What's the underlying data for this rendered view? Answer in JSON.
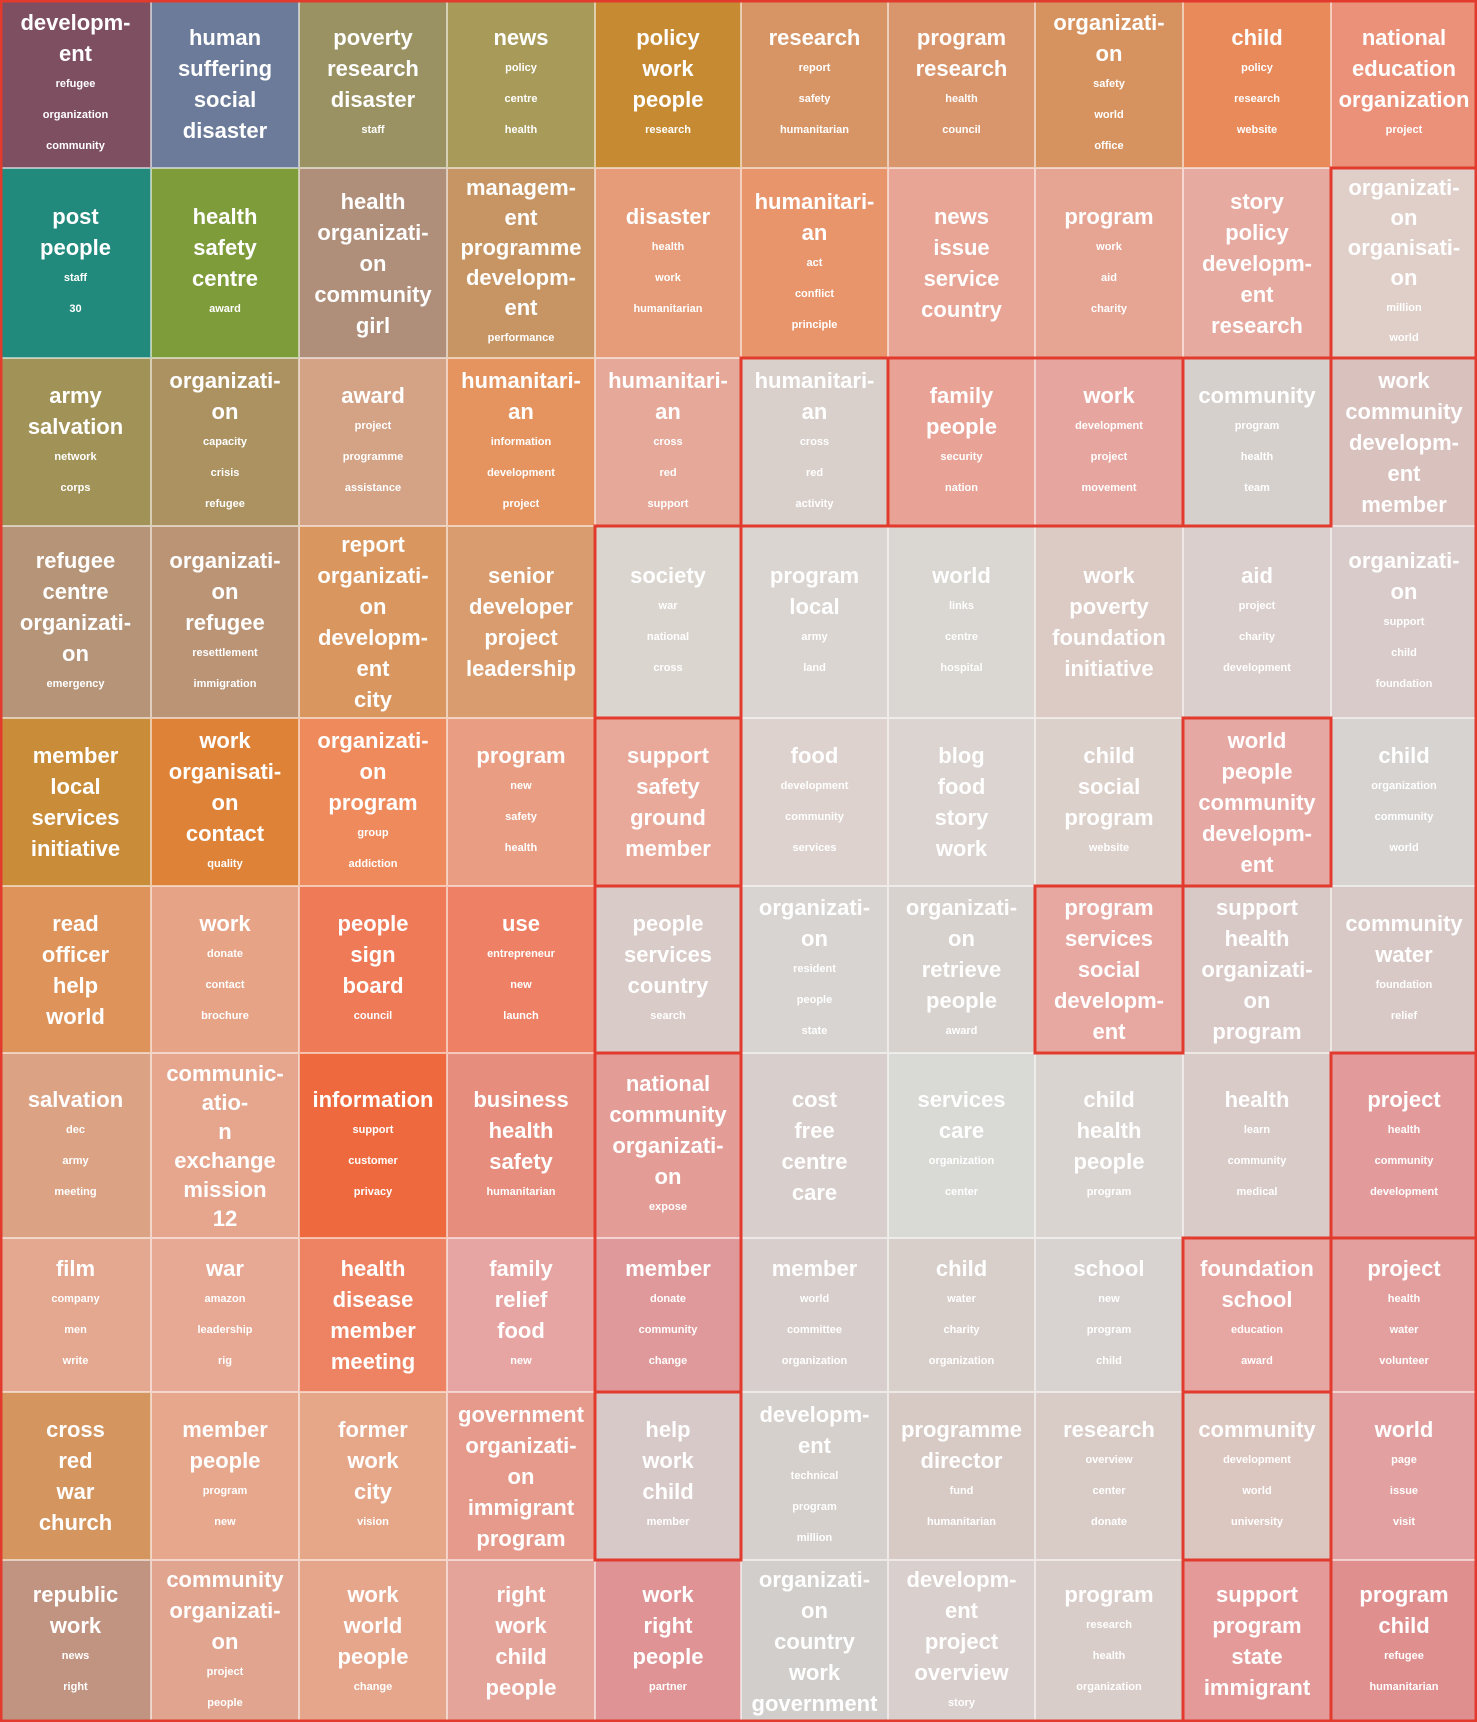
{
  "rows": [
    [
      {
        "color": "#7e4f60",
        "big": [
          "developm-",
          "ent"
        ],
        "small": [
          "refugee",
          "organization",
          "community"
        ]
      },
      {
        "color": "#6b7b99",
        "big": [
          "human",
          "suffering",
          "social",
          "disaster"
        ],
        "small": []
      },
      {
        "color": "#9b9263",
        "big": [
          "poverty",
          "research",
          "disaster"
        ],
        "small": [
          "staff"
        ]
      },
      {
        "color": "#a89a58",
        "big": [
          "news"
        ],
        "small": [
          "policy",
          "centre",
          "health"
        ]
      },
      {
        "color": "#c68b32",
        "big": [
          "policy",
          "work",
          "people"
        ],
        "small": [
          "research"
        ]
      },
      {
        "color": "#d79565",
        "big": [
          "research"
        ],
        "small": [
          "report",
          "safety",
          "humanitarian"
        ]
      },
      {
        "color": "#d9966d",
        "big": [
          "program",
          "research"
        ],
        "small": [
          "health",
          "council"
        ]
      },
      {
        "color": "#d6935f",
        "big": [
          "organizati-",
          "on"
        ],
        "small": [
          "safety",
          "world",
          "office"
        ]
      },
      {
        "color": "#e88a5a",
        "big": [
          "child"
        ],
        "small": [
          "policy",
          "research",
          "website"
        ]
      },
      {
        "color": "#eb917a",
        "big": [
          "national",
          "education",
          "organization"
        ],
        "small": [
          "project"
        ]
      }
    ],
    [
      {
        "color": "#228a7c",
        "big": [
          "post",
          "people"
        ],
        "small": [
          "staff",
          "30"
        ]
      },
      {
        "color": "#7f9c3b",
        "big": [
          "health",
          "safety",
          "centre"
        ],
        "small": [
          "award"
        ]
      },
      {
        "color": "#b08f7a",
        "big": [
          "health",
          "organizati-",
          "on",
          "community",
          "girl"
        ],
        "small": []
      },
      {
        "color": "#c79563",
        "big": [
          "managem-",
          "ent",
          "programme",
          "developm-",
          "ent"
        ],
        "small": [
          "performance"
        ]
      },
      {
        "color": "#e69c78",
        "big": [
          "disaster"
        ],
        "small": [
          "health",
          "work",
          "humanitarian"
        ]
      },
      {
        "color": "#e8956c",
        "big": [
          "humanitari-",
          "an"
        ],
        "small": [
          "act",
          "conflict",
          "principle"
        ]
      },
      {
        "color": "#e8a595",
        "big": [
          "news",
          "issue",
          "service",
          "country"
        ],
        "small": []
      },
      {
        "color": "#e6a493",
        "big": [
          "program"
        ],
        "small": [
          "work",
          "aid",
          "charity"
        ]
      },
      {
        "color": "#e6aaa0",
        "big": [
          "story",
          "policy",
          "developm-",
          "ent",
          "research"
        ],
        "small": []
      },
      {
        "color": "#dfcfc8",
        "big": [
          "organizati-",
          "on",
          "organisati-",
          "on"
        ],
        "small": [
          "million",
          "world"
        ]
      }
    ],
    [
      {
        "color": "#a19357",
        "big": [
          "army",
          "salvation"
        ],
        "small": [
          "network",
          "corps"
        ]
      },
      {
        "color": "#ad9261",
        "big": [
          "organizati-",
          "on"
        ],
        "small": [
          "capacity",
          "crisis",
          "refugee"
        ]
      },
      {
        "color": "#d4a285",
        "big": [
          "award"
        ],
        "small": [
          "project",
          "programme",
          "assistance"
        ]
      },
      {
        "color": "#e6945f",
        "big": [
          "humanitari-",
          "an"
        ],
        "small": [
          "information",
          "development",
          "project"
        ]
      },
      {
        "color": "#e6a898",
        "big": [
          "humanitari-",
          "an"
        ],
        "small": [
          "cross",
          "red",
          "support"
        ]
      },
      {
        "color": "#d9d0cb",
        "big": [
          "humanitari-",
          "an"
        ],
        "small": [
          "cross",
          "red",
          "activity"
        ]
      },
      {
        "color": "#e9a296",
        "big": [
          "family",
          "people"
        ],
        "small": [
          "security",
          "nation"
        ]
      },
      {
        "color": "#e7a59f",
        "big": [
          "work"
        ],
        "small": [
          "development",
          "project",
          "movement"
        ]
      },
      {
        "color": "#d6d0cd",
        "big": [
          "community"
        ],
        "small": [
          "program",
          "health",
          "team"
        ]
      },
      {
        "color": "#d9c1be",
        "big": [
          "work",
          "community",
          "developm-",
          "ent",
          "member"
        ],
        "small": []
      }
    ],
    [
      {
        "color": "#b69478",
        "big": [
          "refugee",
          "centre",
          "organizati-",
          "on"
        ],
        "small": [
          "emergency"
        ]
      },
      {
        "color": "#ba9475",
        "big": [
          "organizati-",
          "on",
          "refugee"
        ],
        "small": [
          "resettlement",
          "immigration"
        ]
      },
      {
        "color": "#d9965f",
        "big": [
          "report",
          "organizati-",
          "on",
          "developm-",
          "ent",
          "city"
        ],
        "small": []
      },
      {
        "color": "#d99c6e",
        "big": [
          "senior",
          "developer",
          "project",
          "leadership"
        ],
        "small": []
      },
      {
        "color": "#dbd5d0",
        "big": [
          "society"
        ],
        "small": [
          "war",
          "national",
          "cross"
        ]
      },
      {
        "color": "#dad5d1",
        "big": [
          "program",
          "local"
        ],
        "small": [
          "army",
          "land"
        ]
      },
      {
        "color": "#dad6d1",
        "big": [
          "world"
        ],
        "small": [
          "links",
          "centre",
          "hospital"
        ]
      },
      {
        "color": "#dccbc4",
        "big": [
          "work",
          "poverty",
          "foundation",
          "initiative"
        ],
        "small": []
      },
      {
        "color": "#dacfcc",
        "big": [
          "aid"
        ],
        "small": [
          "project",
          "charity",
          "development"
        ]
      },
      {
        "color": "#d8cbc9",
        "big": [
          "organizati-",
          "on"
        ],
        "small": [
          "support",
          "child",
          "foundation"
        ]
      }
    ],
    [
      {
        "color": "#c98d3a",
        "big": [
          "member",
          "local",
          "services",
          "initiative"
        ],
        "small": []
      },
      {
        "color": "#de8238",
        "big": [
          "work",
          "organisati-",
          "on",
          "contact"
        ],
        "small": [
          "quality"
        ]
      },
      {
        "color": "#ee8a5c",
        "big": [
          "organizati-",
          "on",
          "program"
        ],
        "small": [
          "group",
          "addiction"
        ]
      },
      {
        "color": "#e99e83",
        "big": [
          "program"
        ],
        "small": [
          "new",
          "safety",
          "health"
        ]
      },
      {
        "color": "#e9a99a",
        "big": [
          "support",
          "safety",
          "ground",
          "member"
        ],
        "small": []
      },
      {
        "color": "#ddd2ce",
        "big": [
          "food"
        ],
        "small": [
          "development",
          "community",
          "services"
        ]
      },
      {
        "color": "#dbd4d0",
        "big": [
          "blog",
          "food",
          "story",
          "work"
        ],
        "small": []
      },
      {
        "color": "#dcd0cb",
        "big": [
          "child",
          "social",
          "program"
        ],
        "small": [
          "website"
        ]
      },
      {
        "color": "#e6a8a3",
        "big": [
          "world",
          "people",
          "community",
          "developm-",
          "ent"
        ],
        "small": []
      },
      {
        "color": "#d6d3d1",
        "big": [
          "child"
        ],
        "small": [
          "organization",
          "community",
          "world"
        ]
      }
    ],
    [
      {
        "color": "#dd935a",
        "big": [
          "read",
          "officer",
          "help",
          "world"
        ],
        "small": []
      },
      {
        "color": "#e7a386",
        "big": [
          "work"
        ],
        "small": [
          "donate",
          "contact",
          "brochure"
        ]
      },
      {
        "color": "#ee7a58",
        "big": [
          "people",
          "sign",
          "board"
        ],
        "small": [
          "council"
        ]
      },
      {
        "color": "#ee8065",
        "big": [
          "use"
        ],
        "small": [
          "entrepreneur",
          "new",
          "launch"
        ]
      },
      {
        "color": "#d9cbc7",
        "big": [
          "people",
          "services",
          "country"
        ],
        "small": [
          "search"
        ]
      },
      {
        "color": "#d8d4d1",
        "big": [
          "organizati-",
          "on"
        ],
        "small": [
          "resident",
          "people",
          "state"
        ]
      },
      {
        "color": "#d8d2ce",
        "big": [
          "organizati-",
          "on",
          "retrieve",
          "people"
        ],
        "small": [
          "award"
        ]
      },
      {
        "color": "#e8a8a2",
        "big": [
          "program",
          "services",
          "social",
          "developm-",
          "ent"
        ],
        "small": []
      },
      {
        "color": "#d8c9c7",
        "big": [
          "support",
          "health",
          "organizati-",
          "on",
          "program"
        ],
        "small": []
      },
      {
        "color": "#d8c9c6",
        "big": [
          "community",
          "water"
        ],
        "small": [
          "foundation",
          "relief"
        ]
      }
    ],
    [
      {
        "color": "#dca284",
        "big": [
          "salvation"
        ],
        "small": [
          "dec",
          "army",
          "meeting"
        ]
      },
      {
        "color": "#e6a68e",
        "big": [
          "communic-",
          "atio-",
          "n",
          "exchange",
          "mission",
          "12"
        ],
        "small": []
      },
      {
        "color": "#ee6a3e",
        "big": [
          "information"
        ],
        "small": [
          "support",
          "customer",
          "privacy"
        ]
      },
      {
        "color": "#e68d7d",
        "big": [
          "business",
          "health",
          "safety"
        ],
        "small": [
          "humanitarian"
        ]
      },
      {
        "color": "#e49c96",
        "big": [
          "national",
          "community",
          "organizati-",
          "on"
        ],
        "small": [
          "expose"
        ]
      },
      {
        "color": "#d8cfcc",
        "big": [
          "cost",
          "free",
          "centre",
          "care"
        ],
        "small": []
      },
      {
        "color": "#d9d9d6",
        "big": [
          "services",
          "care"
        ],
        "small": [
          "organization",
          "center"
        ]
      },
      {
        "color": "#dad4d1",
        "big": [
          "child",
          "health",
          "people"
        ],
        "small": [
          "program"
        ]
      },
      {
        "color": "#d8cbc8",
        "big": [
          "health"
        ],
        "small": [
          "learn",
          "community",
          "medical"
        ]
      },
      {
        "color": "#e29a9b",
        "big": [
          "project"
        ],
        "small": [
          "health",
          "community",
          "development"
        ]
      }
    ],
    [
      {
        "color": "#e4a78f",
        "big": [
          "film"
        ],
        "small": [
          "company",
          "men",
          "write"
        ]
      },
      {
        "color": "#e7a894",
        "big": [
          "war"
        ],
        "small": [
          "amazon",
          "leadership",
          "rig"
        ]
      },
      {
        "color": "#ee8363",
        "big": [
          "health",
          "disease",
          "member",
          "meeting"
        ],
        "small": []
      },
      {
        "color": "#e6a5a2",
        "big": [
          "family",
          "relief",
          "food"
        ],
        "small": [
          "new"
        ]
      },
      {
        "color": "#e0999a",
        "big": [
          "member"
        ],
        "small": [
          "donate",
          "community",
          "change"
        ]
      },
      {
        "color": "#d8cfcc",
        "big": [
          "member"
        ],
        "small": [
          "world",
          "committee",
          "organization"
        ]
      },
      {
        "color": "#d8cfcb",
        "big": [
          "child"
        ],
        "small": [
          "water",
          "charity",
          "organization"
        ]
      },
      {
        "color": "#d8d3d0",
        "big": [
          "school"
        ],
        "small": [
          "new",
          "program",
          "child"
        ]
      },
      {
        "color": "#e6a6a2",
        "big": [
          "foundation",
          "school"
        ],
        "small": [
          "education",
          "award"
        ]
      },
      {
        "color": "#e39f9e",
        "big": [
          "project"
        ],
        "small": [
          "health",
          "water",
          "volunteer"
        ]
      }
    ],
    [
      {
        "color": "#d5955f",
        "big": [
          "cross",
          "red",
          "war",
          "church"
        ],
        "small": []
      },
      {
        "color": "#e6a78c",
        "big": [
          "member",
          "people"
        ],
        "small": [
          "program",
          "new"
        ]
      },
      {
        "color": "#e6a688",
        "big": [
          "former",
          "work",
          "city"
        ],
        "small": [
          "vision"
        ]
      },
      {
        "color": "#e59a8b",
        "big": [
          "government",
          "organizati-",
          "on",
          "immigrant",
          "program"
        ],
        "small": []
      },
      {
        "color": "#d7c9c8",
        "big": [
          "help",
          "work",
          "child"
        ],
        "small": [
          "member"
        ]
      },
      {
        "color": "#d6d0cd",
        "big": [
          "developm-",
          "ent"
        ],
        "small": [
          "technical",
          "program",
          "million"
        ]
      },
      {
        "color": "#d7cac5",
        "big": [
          "programme",
          "director"
        ],
        "small": [
          "fund",
          "humanitarian"
        ]
      },
      {
        "color": "#d9ccc7",
        "big": [
          "research"
        ],
        "small": [
          "overview",
          "center",
          "donate"
        ]
      },
      {
        "color": "#dcc6c0",
        "big": [
          "community"
        ],
        "small": [
          "development",
          "world",
          "university"
        ]
      },
      {
        "color": "#e2a1a0",
        "big": [
          "world"
        ],
        "small": [
          "page",
          "issue",
          "visit"
        ]
      }
    ],
    [
      {
        "color": "#c19481",
        "big": [
          "republic",
          "work"
        ],
        "small": [
          "news",
          "right"
        ]
      },
      {
        "color": "#e1a48e",
        "big": [
          "community",
          "organizati-",
          "on"
        ],
        "small": [
          "project",
          "people"
        ]
      },
      {
        "color": "#e6a68c",
        "big": [
          "work",
          "world",
          "people"
        ],
        "small": [
          "change"
        ]
      },
      {
        "color": "#e5a49a",
        "big": [
          "right",
          "work",
          "child",
          "people"
        ],
        "small": []
      },
      {
        "color": "#df9394",
        "big": [
          "work",
          "right",
          "people"
        ],
        "small": [
          "partner"
        ]
      },
      {
        "color": "#d1cecb",
        "big": [
          "organizati-",
          "on",
          "country",
          "work",
          "government"
        ],
        "small": []
      },
      {
        "color": "#d9cfcc",
        "big": [
          "developm-",
          "ent",
          "project",
          "overview"
        ],
        "small": [
          "story"
        ]
      },
      {
        "color": "#d9cdc9",
        "big": [
          "program"
        ],
        "small": [
          "research",
          "health",
          "organization"
        ]
      },
      {
        "color": "#e49a99",
        "big": [
          "support",
          "program",
          "state",
          "immigrant"
        ],
        "small": []
      },
      {
        "color": "#e08f8f",
        "big": [
          "program",
          "child"
        ],
        "small": [
          "refugee",
          "humanitarian"
        ]
      }
    ]
  ]
}
